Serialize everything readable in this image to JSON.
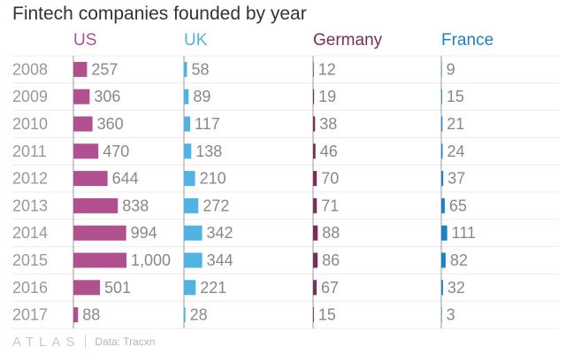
{
  "chart_data": {
    "type": "bar",
    "title": "Fintech companies founded by year",
    "categories": [
      "2008",
      "2009",
      "2010",
      "2011",
      "2012",
      "2013",
      "2014",
      "2015",
      "2016",
      "2017"
    ],
    "series": [
      {
        "name": "US",
        "color": "#b0508e",
        "values": [
          257,
          306,
          360,
          470,
          644,
          838,
          994,
          1000,
          501,
          88
        ],
        "labels": [
          "257",
          "306",
          "360",
          "470",
          "644",
          "838",
          "994",
          "1,000",
          "501",
          "88"
        ]
      },
      {
        "name": "UK",
        "color": "#52b3e3",
        "values": [
          58,
          89,
          117,
          138,
          210,
          272,
          342,
          344,
          221,
          28
        ],
        "labels": [
          "58",
          "89",
          "117",
          "138",
          "210",
          "272",
          "342",
          "344",
          "221",
          "28"
        ]
      },
      {
        "name": "Germany",
        "color": "#7b2d5c",
        "values": [
          12,
          19,
          38,
          46,
          70,
          71,
          88,
          86,
          67,
          15
        ],
        "labels": [
          "12",
          "19",
          "38",
          "46",
          "70",
          "71",
          "88",
          "86",
          "67",
          "15"
        ]
      },
      {
        "name": "France",
        "color": "#1b82c8",
        "values": [
          9,
          15,
          21,
          24,
          37,
          65,
          111,
          82,
          32,
          3
        ],
        "labels": [
          "9",
          "15",
          "21",
          "24",
          "37",
          "65",
          "111",
          "82",
          "32",
          "3"
        ]
      }
    ],
    "shared_scale": true,
    "grid": true
  },
  "footer": {
    "logo": "ATLAS",
    "source": "Data: Tracxn"
  }
}
